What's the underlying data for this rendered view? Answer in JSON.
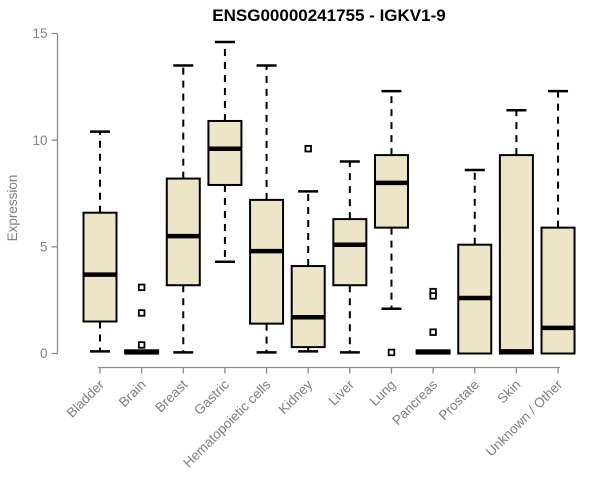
{
  "chart_data": {
    "type": "boxplot",
    "title": "ENSG00000241755 - IGKV1-9",
    "ylabel": "Expression",
    "xlabel": "",
    "ylim": [
      0,
      15
    ],
    "yticks": [
      0,
      5,
      10,
      15
    ],
    "grid": "off",
    "legend": "none",
    "categories": [
      "Bladder",
      "Brain",
      "Breast",
      "Gastric",
      "Hematopoietic cells",
      "Kidney",
      "Liver",
      "Lung",
      "Pancreas",
      "Prostate",
      "Skin",
      "Unknown / Other"
    ],
    "series": [
      {
        "category": "Bladder",
        "whisker_low": 0.1,
        "q1": 1.5,
        "median": 3.7,
        "q3": 6.6,
        "whisker_high": 10.4,
        "outliers": []
      },
      {
        "category": "Brain",
        "whisker_low": 0,
        "q1": 0,
        "median": 0.05,
        "q3": 0.15,
        "whisker_high": 0.15,
        "outliers": [
          3.1,
          1.9,
          0.4
        ]
      },
      {
        "category": "Breast",
        "whisker_low": 0.05,
        "q1": 3.2,
        "median": 5.5,
        "q3": 8.2,
        "whisker_high": 13.5,
        "outliers": []
      },
      {
        "category": "Gastric",
        "whisker_low": 4.3,
        "q1": 7.9,
        "median": 9.6,
        "q3": 10.9,
        "whisker_high": 14.6,
        "outliers": []
      },
      {
        "category": "Hematopoietic cells",
        "whisker_low": 0.05,
        "q1": 1.4,
        "median": 4.8,
        "q3": 7.2,
        "whisker_high": 13.5,
        "outliers": []
      },
      {
        "category": "Kidney",
        "whisker_low": 0.1,
        "q1": 0.3,
        "median": 1.7,
        "q3": 4.1,
        "whisker_high": 7.6,
        "outliers": [
          9.6
        ]
      },
      {
        "category": "Liver",
        "whisker_low": 0.05,
        "q1": 3.2,
        "median": 5.1,
        "q3": 6.3,
        "whisker_high": 9.0,
        "outliers": []
      },
      {
        "category": "Lung",
        "whisker_low": 2.1,
        "q1": 5.9,
        "median": 8.0,
        "q3": 9.3,
        "whisker_high": 12.3,
        "outliers": [
          0.05
        ]
      },
      {
        "category": "Pancreas",
        "whisker_low": 0,
        "q1": 0,
        "median": 0.05,
        "q3": 0.15,
        "whisker_high": 0.15,
        "outliers": [
          2.9,
          2.7,
          1.0
        ]
      },
      {
        "category": "Prostate",
        "whisker_low": 0,
        "q1": 0,
        "median": 2.6,
        "q3": 5.1,
        "whisker_high": 8.6,
        "outliers": []
      },
      {
        "category": "Skin",
        "whisker_low": 0,
        "q1": 0,
        "median": 0.1,
        "q3": 9.3,
        "whisker_high": 11.4,
        "outliers": []
      },
      {
        "category": "Unknown / Other",
        "whisker_low": 0,
        "q1": 0,
        "median": 1.2,
        "q3": 5.9,
        "whisker_high": 12.3,
        "outliers": []
      }
    ],
    "colors": {
      "box_fill": "#ece5c8",
      "box_stroke": "#000000",
      "median": "#000000",
      "whisker": "#000000",
      "axis": "#8a8a8a",
      "tick_label": "#7f7f7f",
      "title": "#000000",
      "background": "#ffffff"
    }
  }
}
